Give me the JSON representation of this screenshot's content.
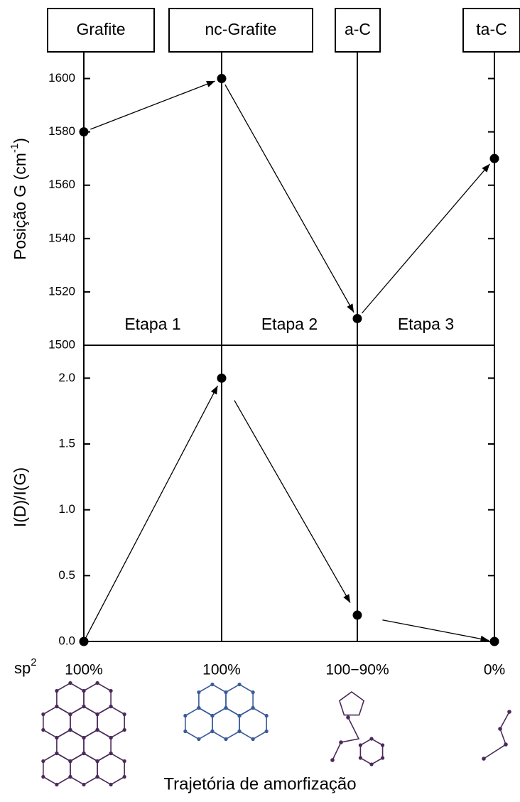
{
  "chart_data": [
    {
      "type": "line",
      "categories": [
        "Grafite",
        "nc-Grafite",
        "a-C",
        "ta-C"
      ],
      "values": [
        1580,
        1600,
        1510,
        1570
      ],
      "color": "#000000",
      "ylim": [
        1500,
        1610
      ],
      "yticks": [
        1500,
        1520,
        1540,
        1560,
        1580,
        1600
      ],
      "y_label": [
        "Posição G (cm",
        "-1",
        ")"
      ],
      "stage_labels": [
        "Etapa 1",
        "Etapa 2",
        "Etapa 3"
      ]
    },
    {
      "type": "line",
      "categories": [
        "100%",
        "100%",
        "100−90%",
        "0%"
      ],
      "category_prefix": [
        "sp",
        "2"
      ],
      "values": [
        0,
        2.0,
        0.2,
        0
      ],
      "color": "#000000",
      "ylim": [
        0,
        2.25
      ],
      "yticks": [
        {
          "value": 0,
          "label": "0.0"
        },
        0.5,
        {
          "value": 1,
          "label": "1.0"
        },
        1.5,
        {
          "value": 2,
          "label": "2.0"
        }
      ],
      "y_label": "I(D)/I(G)",
      "x_label": "Trajetória de amorfização"
    }
  ]
}
